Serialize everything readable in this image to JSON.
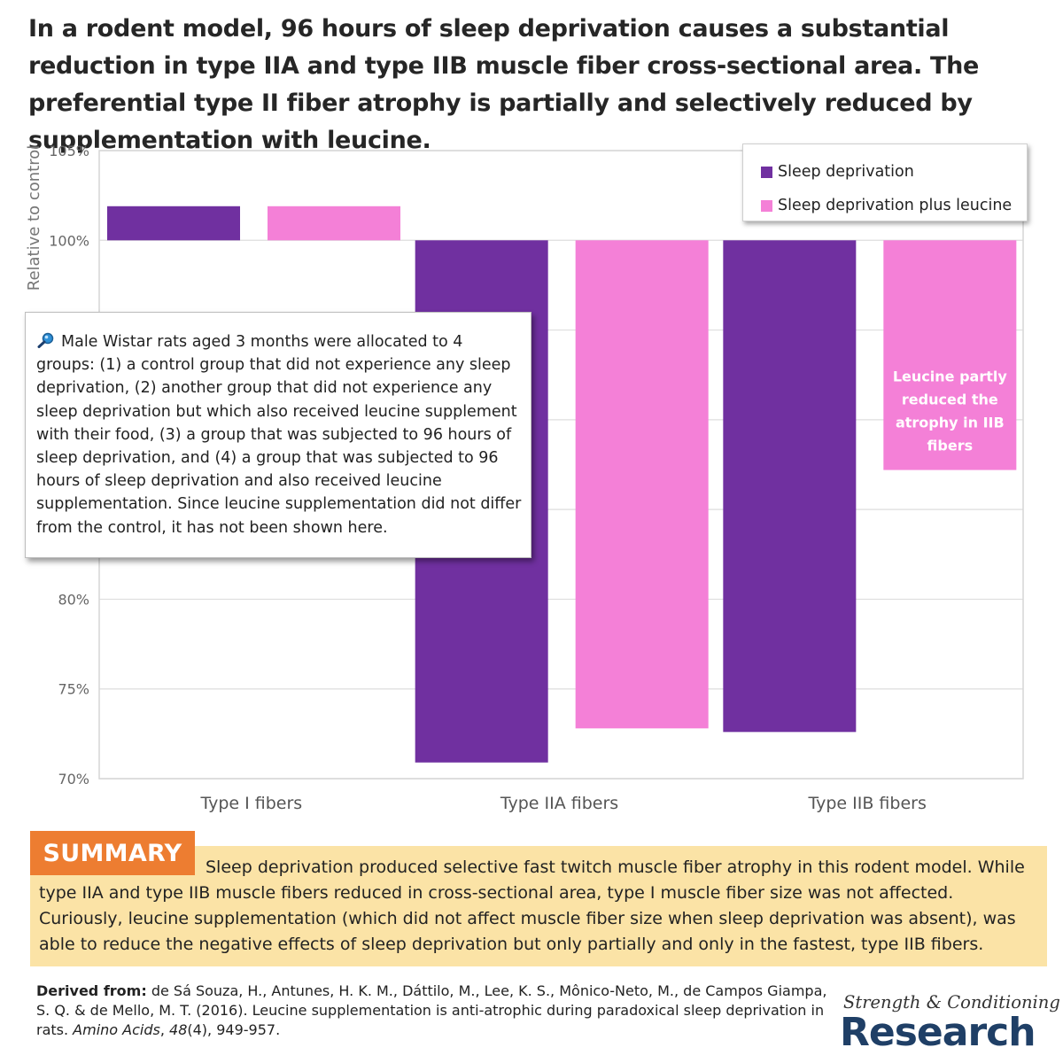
{
  "headline": "In a rodent model, 96 hours of sleep deprivation causes a substantial reduction in type IIA and type IIB muscle fiber cross-sectional area. The preferential type II fiber atrophy is partially and selectively reduced by supplementation with leucine.",
  "chart_data": {
    "type": "bar",
    "categories": [
      "Type I fibers",
      "Type IIA fibers",
      "Type IIB fibers"
    ],
    "series": [
      {
        "name": "Sleep deprivation",
        "color": "#7030a0",
        "values": [
          101.9,
          70.9,
          72.6
        ]
      },
      {
        "name": "Sleep deprivation plus leucine",
        "color": "#f480d7",
        "values": [
          101.9,
          72.8,
          87.2
        ]
      }
    ],
    "baseline": 100,
    "ylabel": "Relative to control",
    "ylim": [
      70,
      105
    ],
    "yticks": [
      70,
      75,
      80,
      85,
      90,
      95,
      100,
      105
    ],
    "ytick_labels": [
      "70%",
      "75%",
      "80%",
      "",
      "",
      "",
      "100%",
      "105%"
    ],
    "grid": true,
    "legend_position": "top-right",
    "annotation": "Leucine partly reduced the atrophy in IIB fibers"
  },
  "note": {
    "icon": "magnifier-icon",
    "text": "Male Wistar rats aged 3 months were allocated to 4 groups: (1) a control group that did not experience any sleep deprivation, (2) another group that did not experience any sleep deprivation but which also received leucine supplement with their food, (3) a group that was subjected to 96 hours of sleep deprivation, and (4) a group that was subjected to 96 hours of sleep deprivation and also received leucine supplementation. Since leucine supplementation did not differ from the control, it has not been shown here."
  },
  "summary": {
    "label": "SUMMARY",
    "text": "Sleep deprivation produced selective fast twitch muscle fiber atrophy in this rodent model. While type IIA and type IIB muscle fibers reduced in cross-sectional area, type I muscle fiber size was not affected. Curiously, leucine supplementation (which did not affect muscle fiber size when sleep deprivation was absent), was able to reduce the negative effects of sleep deprivation but only partially and only in the fastest, type IIB fibers."
  },
  "citation": {
    "lead": "Derived from:",
    "authors": " de Sá Souza, H., Antunes, H. K. M., Dáttilo, M., Lee, K. S., Mônico-Neto, M., de Campos Giampa, S. Q. & de Mello, M. T. (2016). Leucine supplementation is anti-atrophic during paradoxical sleep deprivation in rats. ",
    "journal": "Amino Acids",
    "sep1": ", ",
    "volume": "48",
    "issue_pages": "(4), 949-957."
  },
  "brand": {
    "script": "Strength & Conditioning",
    "word": "Research"
  }
}
